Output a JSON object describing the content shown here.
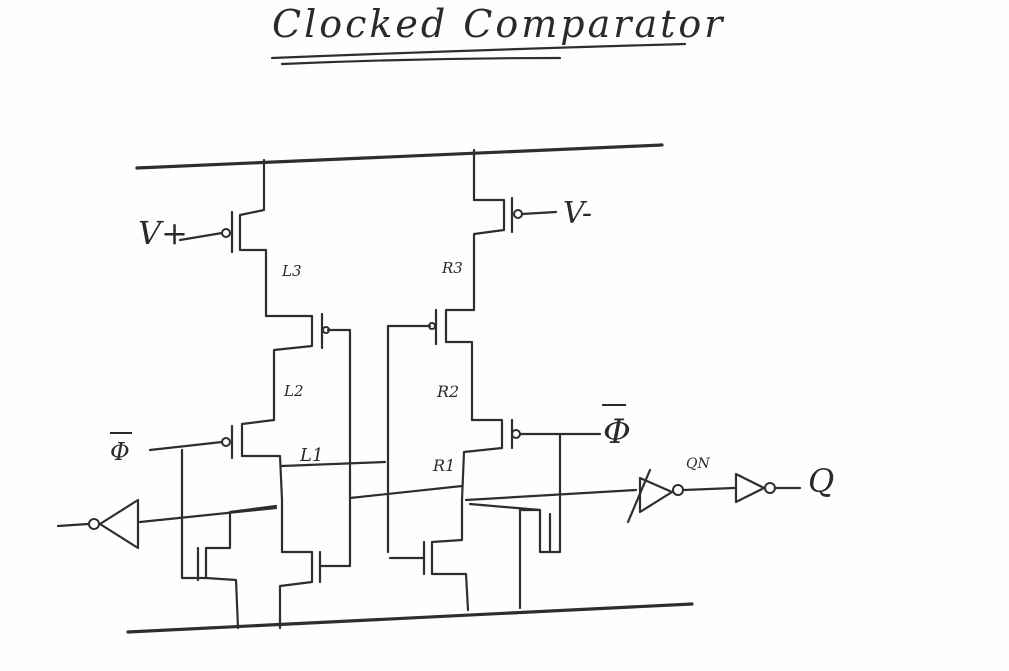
{
  "title": "Clocked Comparator",
  "labels": {
    "vplus": "V+",
    "vminus": "V-",
    "l3": "L3",
    "r3": "R3",
    "l2": "L2",
    "r2": "R2",
    "l1": "L1",
    "r1": "R1",
    "qn": "QN",
    "q": "Q",
    "phi_bar_left": "Φ",
    "phi_bar_right": "Φ"
  }
}
